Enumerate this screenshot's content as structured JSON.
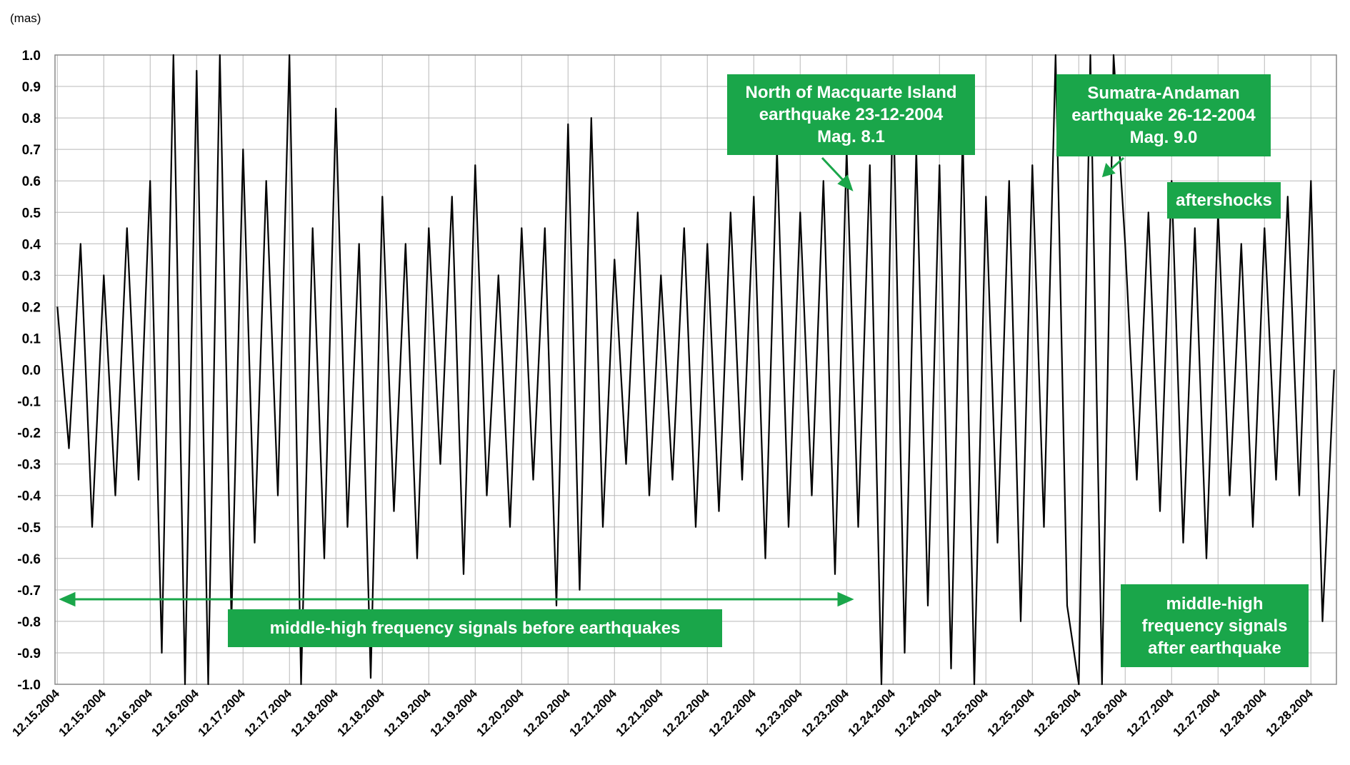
{
  "chart_data": {
    "type": "line",
    "ylabel": "(mas)",
    "color": "#000000",
    "grid": true,
    "ylim": [
      -1,
      1
    ],
    "yticks": [
      {
        "value": -1,
        "label": "-1.0"
      },
      -0.9,
      -0.8,
      -0.7,
      -0.6,
      -0.5,
      -0.4,
      -0.3,
      -0.2,
      -0.1,
      {
        "value": 0,
        "label": "0.0"
      },
      0.1,
      0.2,
      0.3,
      0.4,
      0.5,
      0.6,
      0.7,
      0.8,
      0.9,
      {
        "value": 1,
        "label": "1.0"
      }
    ],
    "xlim": [
      -0.05,
      27.55
    ],
    "xticks": [
      {
        "value": 0,
        "label": "12.15.2004"
      },
      {
        "value": 1,
        "label": "12.15.2004"
      },
      {
        "value": 2,
        "label": "12.16.2004"
      },
      {
        "value": 3,
        "label": "12.16.2004"
      },
      {
        "value": 4,
        "label": "12.17.2004"
      },
      {
        "value": 5,
        "label": "12.17.2004"
      },
      {
        "value": 6,
        "label": "12.18.2004"
      },
      {
        "value": 7,
        "label": "12.18.2004"
      },
      {
        "value": 8,
        "label": "12.19.2004"
      },
      {
        "value": 9,
        "label": "12.19.2004"
      },
      {
        "value": 10,
        "label": "12.20.2004"
      },
      {
        "value": 11,
        "label": "12.20.2004"
      },
      {
        "value": 12,
        "label": "12.21.2004"
      },
      {
        "value": 13,
        "label": "12.21.2004"
      },
      {
        "value": 14,
        "label": "12.22.2004"
      },
      {
        "value": 15,
        "label": "12.22.2004"
      },
      {
        "value": 16,
        "label": "12.23.2004"
      },
      {
        "value": 17,
        "label": "12.23.2004"
      },
      {
        "value": 18,
        "label": "12.24.2004"
      },
      {
        "value": 19,
        "label": "12.24.2004"
      },
      {
        "value": 20,
        "label": "12.25.2004"
      },
      {
        "value": 21,
        "label": "12.25.2004"
      },
      {
        "value": 22,
        "label": "12.26.2004"
      },
      {
        "value": 23,
        "label": "12.26.2004"
      },
      {
        "value": 24,
        "label": "12.27.2004"
      },
      {
        "value": 25,
        "label": "12.27.2004"
      },
      {
        "value": 26,
        "label": "12.28.2004"
      },
      {
        "value": 27,
        "label": "12.28.2004"
      }
    ],
    "x": [
      0,
      0.25,
      0.5,
      0.75,
      1,
      1.25,
      1.5,
      1.75,
      2,
      2.25,
      2.5,
      2.75,
      3,
      3.25,
      3.5,
      3.75,
      4,
      4.25,
      4.5,
      4.75,
      5,
      5.25,
      5.5,
      5.75,
      6,
      6.25,
      6.5,
      6.75,
      7,
      7.25,
      7.5,
      7.75,
      8,
      8.25,
      8.5,
      8.75,
      9,
      9.25,
      9.5,
      9.75,
      10,
      10.25,
      10.5,
      10.75,
      11,
      11.25,
      11.5,
      11.75,
      12,
      12.25,
      12.5,
      12.75,
      13,
      13.25,
      13.5,
      13.75,
      14,
      14.25,
      14.5,
      14.75,
      15,
      15.25,
      15.5,
      15.75,
      16,
      16.25,
      16.5,
      16.75,
      17,
      17.25,
      17.5,
      17.75,
      18,
      18.25,
      18.5,
      18.75,
      19,
      19.25,
      19.5,
      19.75,
      20,
      20.25,
      20.5,
      20.75,
      21,
      21.25,
      21.5,
      21.75,
      22,
      22.25,
      22.5,
      22.75,
      23,
      23.25,
      23.5,
      23.75,
      24,
      24.25,
      24.5,
      24.75,
      25,
      25.25,
      25.5,
      25.75,
      26,
      26.25,
      26.5,
      26.75,
      27,
      27.25,
      27.5
    ],
    "values": [
      0.2,
      -0.25,
      0.4,
      -0.5,
      0.3,
      -0.4,
      0.45,
      -0.35,
      0.6,
      -0.9,
      1,
      -1,
      0.95,
      -1,
      1,
      -0.8,
      0.7,
      -0.55,
      0.6,
      -0.4,
      1,
      -1,
      0.45,
      -0.6,
      0.83,
      -0.5,
      0.4,
      -0.98,
      0.55,
      -0.45,
      0.4,
      -0.6,
      0.45,
      -0.3,
      0.55,
      -0.65,
      0.65,
      -0.4,
      0.3,
      -0.5,
      0.45,
      -0.35,
      0.45,
      -0.75,
      0.78,
      -0.7,
      0.8,
      -0.5,
      0.35,
      -0.3,
      0.5,
      -0.4,
      0.3,
      -0.35,
      0.45,
      -0.5,
      0.4,
      -0.45,
      0.5,
      -0.35,
      0.55,
      -0.6,
      0.7,
      -0.5,
      0.5,
      -0.4,
      0.6,
      -0.65,
      0.7,
      -0.5,
      0.65,
      -1,
      0.9,
      -0.9,
      0.7,
      -0.75,
      0.65,
      -0.95,
      0.75,
      -1,
      0.55,
      -0.55,
      0.6,
      -0.8,
      0.65,
      -0.5,
      1,
      -0.75,
      -1,
      1,
      -1,
      1,
      0.4,
      -0.35,
      0.5,
      -0.45,
      0.6,
      -0.55,
      0.45,
      -0.6,
      0.5,
      -0.4,
      0.4,
      -0.5,
      0.45,
      -0.35,
      0.55,
      -0.4,
      0.6,
      -0.8,
      0
    ],
    "annotations": [
      [
        "North of Macquarte Island",
        "earthquake 23-12-2004",
        "Mag. 8.1"
      ],
      [
        "Sumatra-Andaman",
        "earthquake 26-12-2004",
        "Mag. 9.0"
      ],
      [
        "aftershocks"
      ],
      [
        "middle-high frequency signals before earthquakes"
      ],
      [
        "middle-high",
        "frequency signals",
        "after earthquake"
      ]
    ]
  }
}
